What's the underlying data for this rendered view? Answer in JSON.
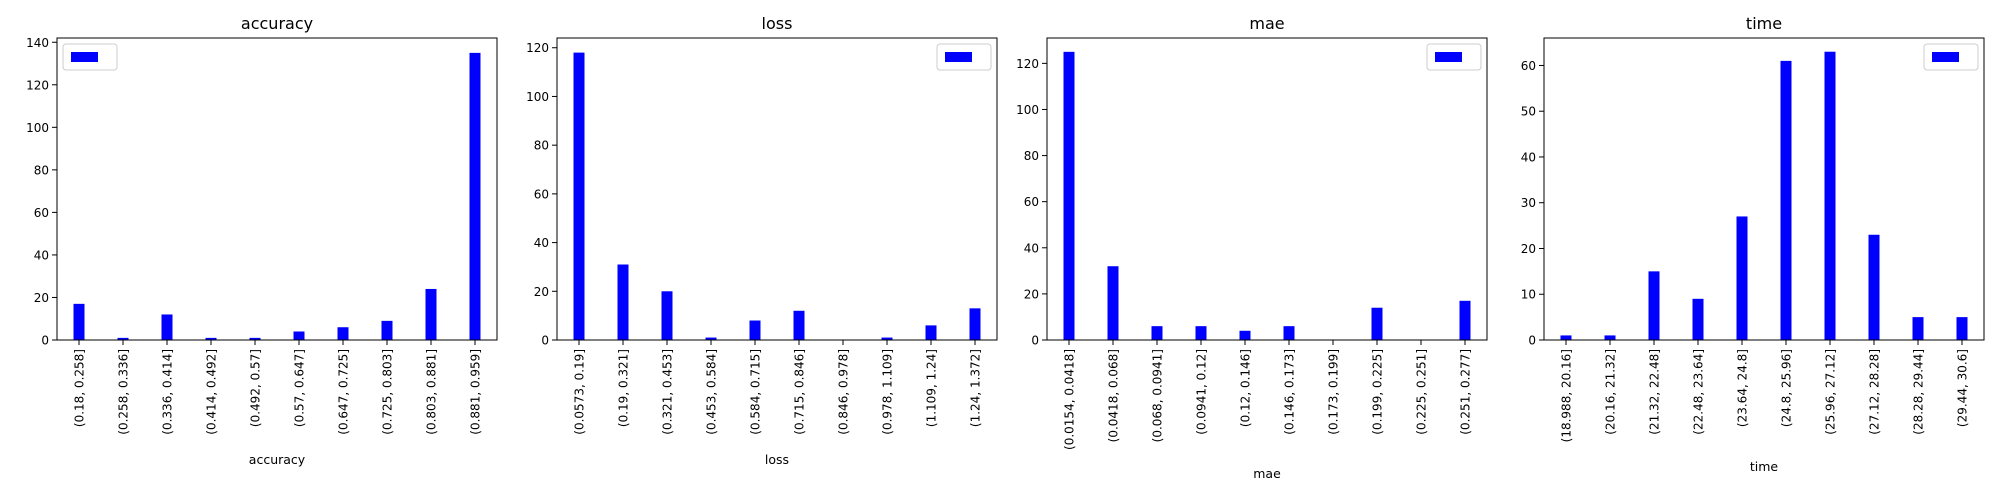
{
  "chart_data": [
    {
      "type": "bar",
      "title": "accuracy",
      "xlabel": "accuracy",
      "ylabel": "",
      "categories": [
        "(0.18, 0.258]",
        "(0.258, 0.336]",
        "(0.336, 0.414]",
        "(0.414, 0.492]",
        "(0.492, 0.57]",
        "(0.57, 0.647]",
        "(0.647, 0.725]",
        "(0.725, 0.803]",
        "(0.803, 0.881]",
        "(0.881, 0.959]"
      ],
      "values": [
        17,
        1,
        12,
        1,
        1,
        4,
        6,
        9,
        24,
        135
      ],
      "ylim": [
        0,
        142
      ],
      "yticks": [
        0,
        20,
        40,
        60,
        80,
        100,
        120,
        140
      ],
      "legend": "top-left",
      "color": "#0000ff",
      "grid": false
    },
    {
      "type": "bar",
      "title": "loss",
      "xlabel": "loss",
      "ylabel": "",
      "categories": [
        "(0.0573, 0.19]",
        "(0.19, 0.321]",
        "(0.321, 0.453]",
        "(0.453, 0.584]",
        "(0.584, 0.715]",
        "(0.715, 0.846]",
        "(0.846, 0.978]",
        "(0.978, 1.109]",
        "(1.109, 1.24]",
        "(1.24, 1.372]"
      ],
      "values": [
        118,
        31,
        20,
        1,
        8,
        12,
        0,
        1,
        6,
        13
      ],
      "ylim": [
        0,
        124
      ],
      "yticks": [
        0,
        20,
        40,
        60,
        80,
        100,
        120
      ],
      "legend": "top-right",
      "color": "#0000ff",
      "grid": false
    },
    {
      "type": "bar",
      "title": "mae",
      "xlabel": "mae",
      "ylabel": "",
      "categories": [
        "(0.0154, 0.0418]",
        "(0.0418, 0.068]",
        "(0.068, 0.0941]",
        "(0.0941, 0.12]",
        "(0.12, 0.146]",
        "(0.146, 0.173]",
        "(0.173, 0.199]",
        "(0.199, 0.225]",
        "(0.225, 0.251]",
        "(0.251, 0.277]"
      ],
      "values": [
        125,
        32,
        6,
        6,
        4,
        6,
        0,
        14,
        0,
        17
      ],
      "ylim": [
        0,
        131
      ],
      "yticks": [
        0,
        20,
        40,
        60,
        80,
        100,
        120
      ],
      "legend": "top-right",
      "color": "#0000ff",
      "grid": false
    },
    {
      "type": "bar",
      "title": "time",
      "xlabel": "time",
      "ylabel": "",
      "categories": [
        "(18.988, 20.16]",
        "(20.16, 21.32]",
        "(21.32, 22.48]",
        "(22.48, 23.64]",
        "(23.64, 24.8]",
        "(24.8, 25.96]",
        "(25.96, 27.12]",
        "(27.12, 28.28]",
        "(28.28, 29.44]",
        "(29.44, 30.6]"
      ],
      "values": [
        1,
        1,
        15,
        9,
        27,
        61,
        63,
        23,
        5,
        5
      ],
      "ylim": [
        0,
        66
      ],
      "yticks": [
        0,
        10,
        20,
        30,
        40,
        50,
        60
      ],
      "legend": "top-right",
      "color": "#0000ff",
      "grid": false
    }
  ]
}
